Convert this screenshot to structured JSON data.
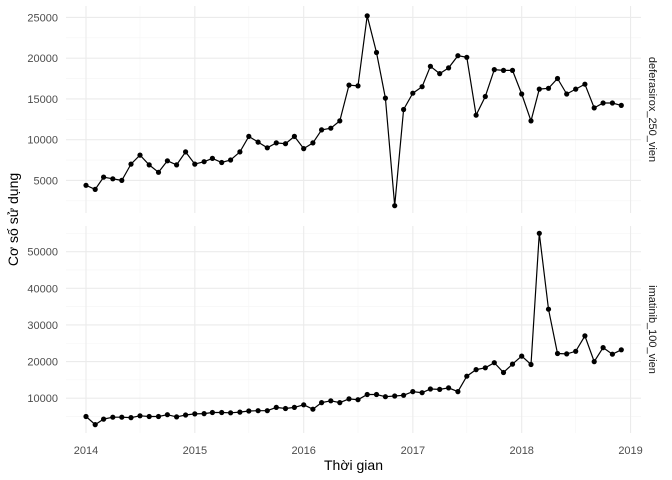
{
  "chart_data": {
    "type": "line",
    "xlabel": "Thời gian",
    "ylabel": "Cơ số sử dụng",
    "x_ticks": [
      "2014",
      "2015",
      "2016",
      "2017",
      "2018",
      "2019"
    ],
    "x_range": [
      "2013-10-26",
      "2019-02-05"
    ],
    "x_start": "2014-01",
    "grid": true,
    "colors": {
      "line": "#000000",
      "point": "#000000",
      "grid_major": "#ebebeb",
      "grid_minor": "#f5f5f5"
    },
    "panels": [
      {
        "strip": "deferasirox_250_vien",
        "ylim": [
          1000,
          26400
        ],
        "y_ticks": [
          5000,
          10000,
          15000,
          20000,
          25000
        ],
        "values": [
          4400,
          3900,
          5400,
          5200,
          5000,
          7000,
          8100,
          6900,
          6000,
          7400,
          6900,
          8500,
          7000,
          7300,
          7700,
          7200,
          7500,
          8500,
          10400,
          9700,
          9000,
          9600,
          9500,
          10400,
          8900,
          9600,
          11200,
          11400,
          12300,
          16700,
          16600,
          25200,
          20700,
          15100,
          1900,
          13700,
          15700,
          16500,
          19000,
          18100,
          18800,
          20300,
          20100,
          13000,
          15300,
          18600,
          18500,
          18500,
          15600,
          12300,
          16200,
          16300,
          17500,
          15600,
          16200,
          16800,
          13900,
          14500,
          14500,
          14200
        ]
      },
      {
        "strip": "imatinib_100_vien",
        "ylim": [
          500,
          57000
        ],
        "y_ticks": [
          10000,
          20000,
          30000,
          40000,
          50000
        ],
        "values": [
          5000,
          2800,
          4300,
          4800,
          4800,
          4700,
          5200,
          5000,
          5000,
          5500,
          4900,
          5400,
          5700,
          5800,
          6100,
          6100,
          6000,
          6200,
          6500,
          6600,
          6600,
          7500,
          7200,
          7500,
          8200,
          7000,
          8800,
          9300,
          8800,
          9800,
          9600,
          11000,
          11000,
          10400,
          10600,
          10800,
          11800,
          11500,
          12500,
          12400,
          12800,
          11800,
          16000,
          17800,
          18300,
          19700,
          17000,
          19300,
          21500,
          19200,
          55000,
          34300,
          22200,
          22100,
          22800,
          27000,
          20000,
          23800,
          22000,
          23200
        ]
      }
    ]
  }
}
